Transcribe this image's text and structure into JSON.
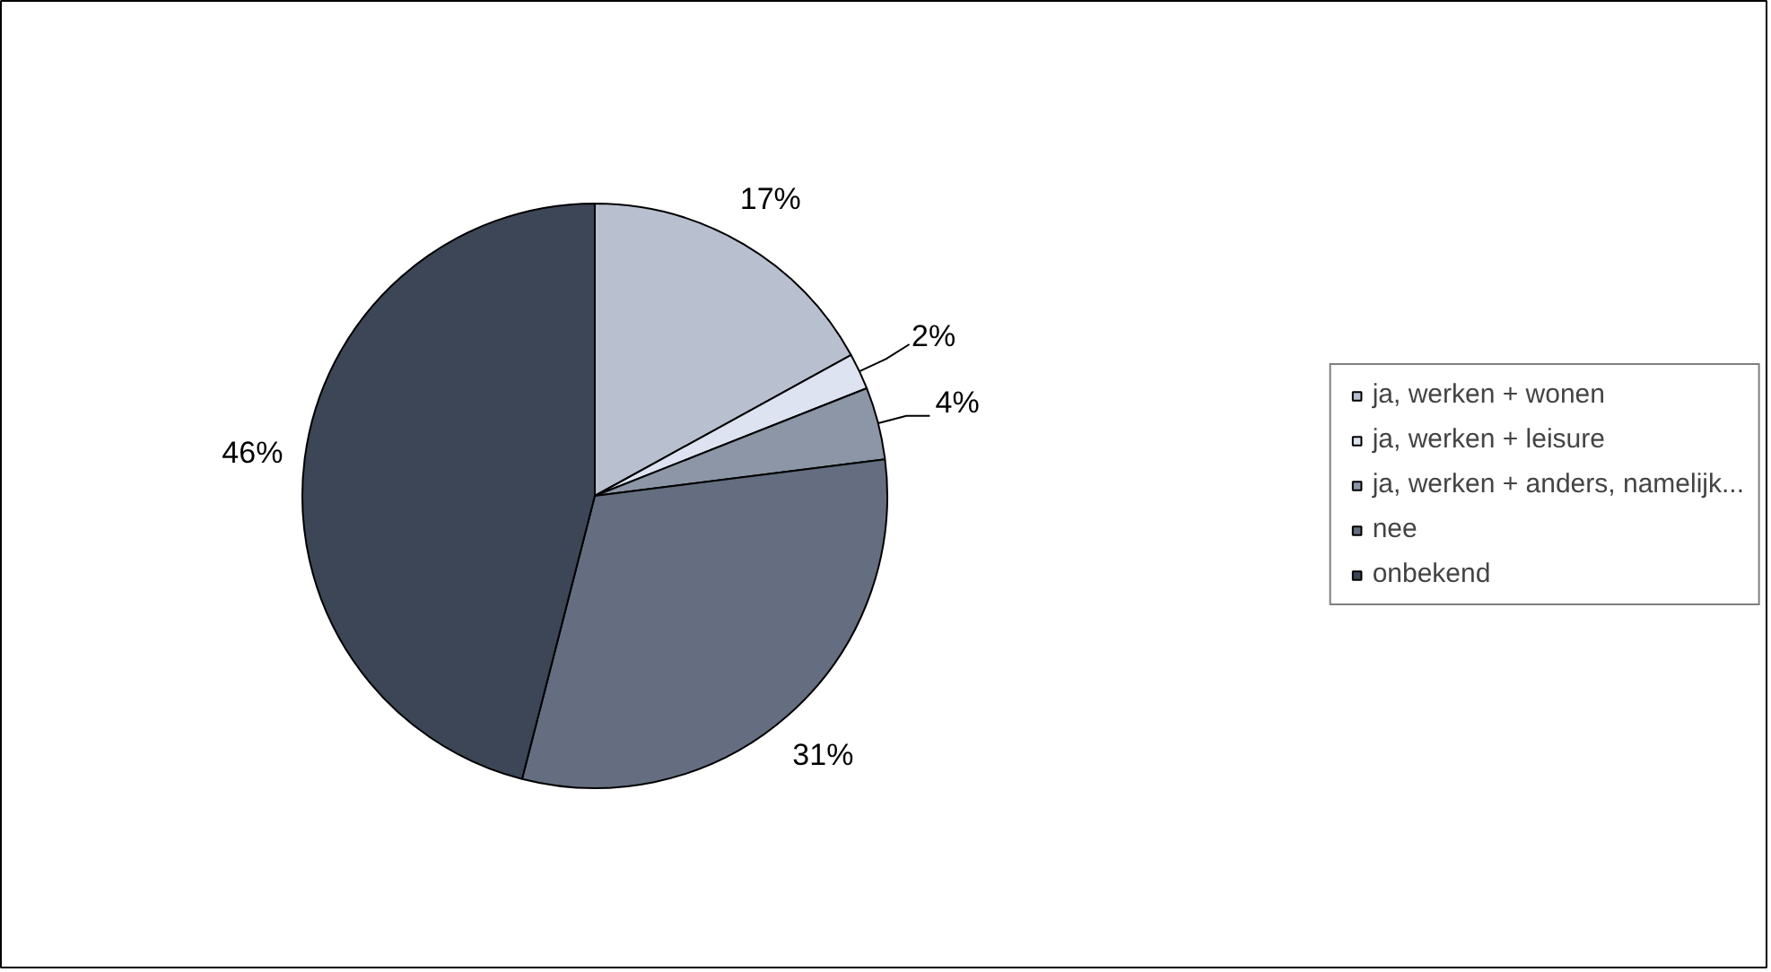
{
  "chart_data": {
    "type": "pie",
    "categories": [
      "ja, werken + wonen",
      "ja, werken + leisure",
      "ja, werken + anders, namelijk...",
      "nee",
      "onbekend"
    ],
    "values": [
      17,
      2,
      4,
      31,
      46
    ],
    "colors": [
      "#b8c0d0",
      "#dde3f0",
      "#8c96a6",
      "#646e80",
      "#3c4656"
    ],
    "value_labels": [
      "17%",
      "2%",
      "4%",
      "31%",
      "46%"
    ],
    "legend": "right"
  }
}
